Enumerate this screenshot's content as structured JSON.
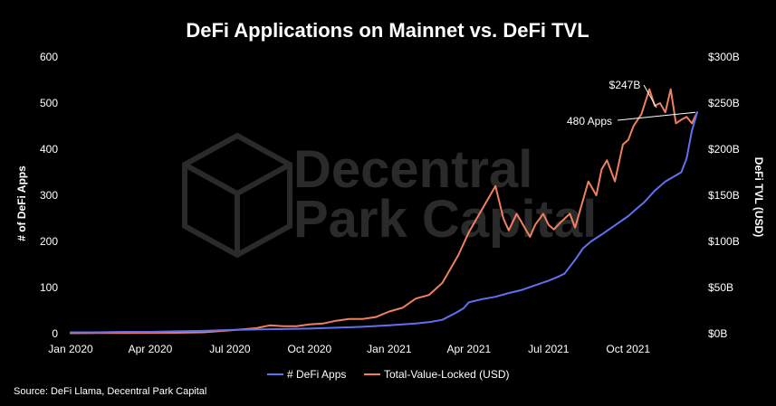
{
  "chart_data": {
    "type": "line",
    "title": "DeFi Applications on Mainnet vs. DeFi TVL",
    "xlabel": "",
    "ylabel_left": "# of DeFi Apps",
    "ylabel_right": "DeFi TVL (USD)",
    "ylim_left": [
      0,
      600
    ],
    "ylim_right": [
      0,
      300
    ],
    "xlim": [
      0,
      23.6
    ],
    "x_ticks": [
      {
        "pos": 0,
        "label": "Jan 2020"
      },
      {
        "pos": 3,
        "label": "Apr 2020"
      },
      {
        "pos": 6,
        "label": "Jul 2020"
      },
      {
        "pos": 9,
        "label": "Oct 2020"
      },
      {
        "pos": 12,
        "label": "Jan 2021"
      },
      {
        "pos": 15,
        "label": "Apr 2021"
      },
      {
        "pos": 18,
        "label": "Jul 2021"
      },
      {
        "pos": 21,
        "label": "Oct 2021"
      }
    ],
    "y_ticks_left": [
      "0",
      "100",
      "200",
      "300",
      "400",
      "500",
      "600"
    ],
    "y_ticks_right": [
      "$0B",
      "$50B",
      "$100B",
      "$150B",
      "$200B",
      "$250B",
      "$300B"
    ],
    "series": [
      {
        "name": "# DeFi Apps",
        "axis": "left",
        "color": "#6270f0",
        "x": [
          0,
          1,
          2,
          3,
          4,
          5,
          6,
          7,
          8,
          9,
          10,
          11,
          12,
          12.5,
          13,
          13.5,
          14,
          14.5,
          14.8,
          15,
          15.5,
          16,
          16.5,
          17,
          17.5,
          18,
          18.3,
          18.6,
          19,
          19.3,
          19.6,
          20,
          20.5,
          21,
          21.3,
          21.6,
          22,
          22.4,
          22.7,
          23,
          23.2,
          23.4,
          23.6
        ],
        "values": [
          3,
          3,
          4,
          4,
          5,
          6,
          8,
          9,
          10,
          11,
          13,
          15,
          18,
          20,
          22,
          25,
          30,
          45,
          55,
          68,
          75,
          80,
          88,
          95,
          105,
          115,
          122,
          130,
          160,
          185,
          200,
          215,
          235,
          255,
          270,
          285,
          310,
          330,
          340,
          350,
          380,
          440,
          480
        ]
      },
      {
        "name": "Total-Value-Locked (USD)",
        "axis": "right",
        "color": "#f08060",
        "x": [
          0,
          1,
          2,
          3,
          4,
          5,
          6,
          7,
          7.5,
          8,
          8.5,
          9,
          9.5,
          10,
          10.5,
          11,
          11.5,
          12,
          12.5,
          13,
          13.5,
          14,
          14.3,
          14.6,
          15,
          15.3,
          15.6,
          16,
          16.3,
          16.5,
          16.8,
          17,
          17.3,
          17.5,
          17.8,
          18,
          18.2,
          18.5,
          18.8,
          19,
          19.2,
          19.5,
          19.8,
          20,
          20.2,
          20.5,
          20.8,
          21,
          21.2,
          21.5,
          21.8,
          22,
          22.2,
          22.4,
          22.6,
          22.8,
          23,
          23.2,
          23.4,
          23.6
        ],
        "values": [
          0.5,
          0.7,
          0.8,
          0.9,
          1.0,
          1.5,
          3.5,
          6,
          9,
          8,
          8,
          10,
          11,
          14,
          16,
          16,
          18,
          24,
          28,
          38,
          42,
          55,
          70,
          85,
          110,
          125,
          140,
          160,
          125,
          112,
          130,
          120,
          105,
          118,
          130,
          118,
          113,
          122,
          130,
          115,
          135,
          165,
          150,
          178,
          188,
          165,
          205,
          210,
          225,
          238,
          265,
          247,
          250,
          240,
          265,
          228,
          232,
          235,
          228,
          240
        ]
      }
    ],
    "annotations": [
      {
        "text": "$247B",
        "series": 1,
        "index": 51
      },
      {
        "text": "480 Apps",
        "series": 0,
        "index": 42
      }
    ],
    "legend": "bottom-center"
  },
  "watermark": {
    "line1": "Decentral",
    "line2": "Park Capital"
  },
  "source_text": "Source: DeFi Llama, Decentral Park Capital"
}
